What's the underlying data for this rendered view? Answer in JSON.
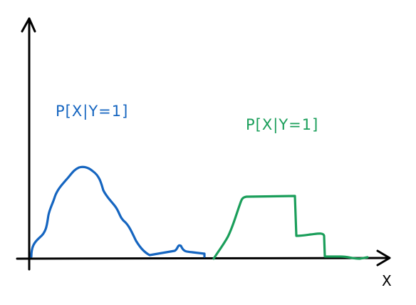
{
  "diagram": {
    "axis": {
      "x_label": "X",
      "color": "#000000"
    },
    "curves": [
      {
        "label": "P[X|Y=1]",
        "color": "#1565c0"
      },
      {
        "label": "P[X|Y=1]",
        "color": "#1a9e5a"
      }
    ]
  }
}
